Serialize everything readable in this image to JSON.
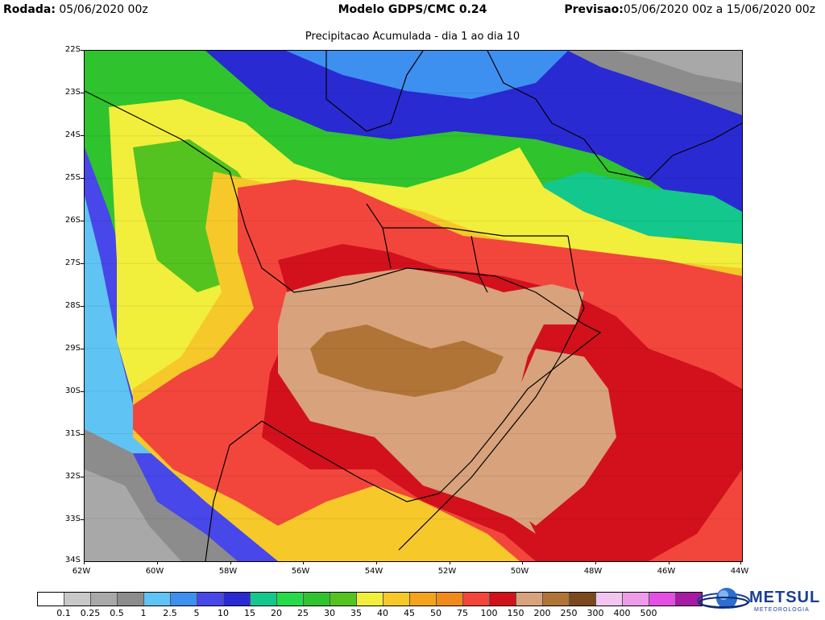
{
  "header": {
    "run_label": "Rodada:",
    "run_value": "05/06/2020 00z",
    "model_label": "Modelo GDPS/CMC 0.24",
    "forecast_label": "Previsao:",
    "forecast_value": "05/06/2020 00z a 15/06/2020 00z"
  },
  "subtitle": "Precipitacao Acumulada - dia 1 ao dia 10",
  "map": {
    "lat_labels": [
      "22S",
      "23S",
      "24S",
      "25S",
      "26S",
      "27S",
      "28S",
      "29S",
      "30S",
      "31S",
      "32S",
      "33S",
      "34S"
    ],
    "lon_labels": [
      "62W",
      "60W",
      "58W",
      "56W",
      "54W",
      "52W",
      "50W",
      "48W",
      "46W",
      "44W"
    ],
    "lat_range": [
      -34,
      -22
    ],
    "lon_range": [
      -62,
      -44
    ]
  },
  "legend": {
    "labels": [
      "0.1",
      "0.25",
      "0.5",
      "1",
      "2.5",
      "5",
      "10",
      "15",
      "20",
      "25",
      "30",
      "35",
      "40",
      "45",
      "50",
      "75",
      "100",
      "150",
      "200",
      "250",
      "300",
      "400",
      "500"
    ],
    "colors": [
      "#ffffff",
      "#c8c8c8",
      "#a8a8a8",
      "#8c8c8c",
      "#5fc4f3",
      "#3d8ff0",
      "#4747ea",
      "#2a2ad2",
      "#14c78c",
      "#25db4a",
      "#2fc32e",
      "#54c320",
      "#f2ee3c",
      "#f6c82a",
      "#f4a41c",
      "#f08a1a",
      "#f2463c",
      "#d2111c",
      "#d7a27c",
      "#b07436",
      "#7a4a1e",
      "#f2c6f0",
      "#ee9ce9",
      "#e44ee4",
      "#a819a4"
    ]
  },
  "logo": {
    "name": "METSUL",
    "tagline": "METEOROLOGIA"
  }
}
